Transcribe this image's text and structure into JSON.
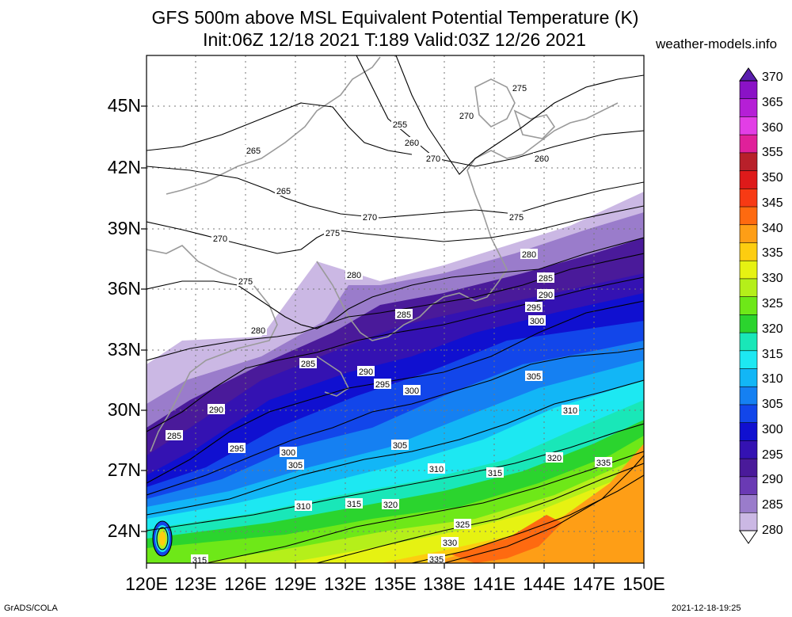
{
  "title": {
    "line1": "GFS 500m above MSL Equivalent Potential Temperature (K)",
    "line2": "Init:06Z 12/18 2021 T:189 Valid:03Z 12/26 2021"
  },
  "site": "weather-models.info",
  "footer": {
    "left": "GrADS/COLA",
    "right": "2021-12-18-19:25"
  },
  "lat_ticks": [
    "45N",
    "42N",
    "39N",
    "36N",
    "33N",
    "30N",
    "27N",
    "24N"
  ],
  "lon_ticks": [
    "120E",
    "123E",
    "126E",
    "129E",
    "132E",
    "135E",
    "138E",
    "141E",
    "144E",
    "147E",
    "150E"
  ],
  "colorbar": {
    "labels": [
      "370",
      "365",
      "360",
      "355",
      "350",
      "345",
      "340",
      "335",
      "330",
      "325",
      "320",
      "315",
      "310",
      "305",
      "300",
      "295",
      "290",
      "285",
      "280"
    ],
    "colors": [
      "#8a12c6",
      "#b51fd6",
      "#e23ee6",
      "#e0209a",
      "#b8202a",
      "#de1a1a",
      "#f73a14",
      "#fe6a10",
      "#fe9e16",
      "#fdcd10",
      "#e6f212",
      "#b5ef1a",
      "#6ee818",
      "#2bd42e",
      "#19e7b8",
      "#1de8f2",
      "#12b6f6",
      "#1580f2",
      "#1246ea",
      "#1010d0",
      "#3412b2",
      "#4a1a9a",
      "#6a3ab4",
      "#9a7ccb",
      "#cbb8e4"
    ],
    "top_arrow_color": "#5a1eae",
    "bottom_arrow_color": "#ffffff"
  },
  "contour_labels": [
    {
      "text": "275"
    },
    {
      "text": "270"
    },
    {
      "text": "255"
    },
    {
      "text": "260"
    },
    {
      "text": "265"
    },
    {
      "text": "270"
    },
    {
      "text": "260"
    },
    {
      "text": "265"
    },
    {
      "text": "270"
    },
    {
      "text": "275"
    },
    {
      "text": "275"
    },
    {
      "text": "270"
    },
    {
      "text": "275"
    },
    {
      "text": "280"
    },
    {
      "text": "280"
    },
    {
      "text": "280"
    },
    {
      "text": "285"
    },
    {
      "text": "290"
    },
    {
      "text": "295"
    },
    {
      "text": "300"
    },
    {
      "text": "285"
    },
    {
      "text": "285"
    },
    {
      "text": "290"
    },
    {
      "text": "295"
    },
    {
      "text": "300"
    },
    {
      "text": "305"
    },
    {
      "text": "290"
    },
    {
      "text": "310"
    },
    {
      "text": "285"
    },
    {
      "text": "295"
    },
    {
      "text": "300"
    },
    {
      "text": "305"
    },
    {
      "text": "305"
    },
    {
      "text": "310"
    },
    {
      "text": "315"
    },
    {
      "text": "320"
    },
    {
      "text": "335"
    },
    {
      "text": "310"
    },
    {
      "text": "315"
    },
    {
      "text": "320"
    },
    {
      "text": "325"
    },
    {
      "text": "330"
    },
    {
      "text": "335"
    },
    {
      "text": "315"
    }
  ]
}
